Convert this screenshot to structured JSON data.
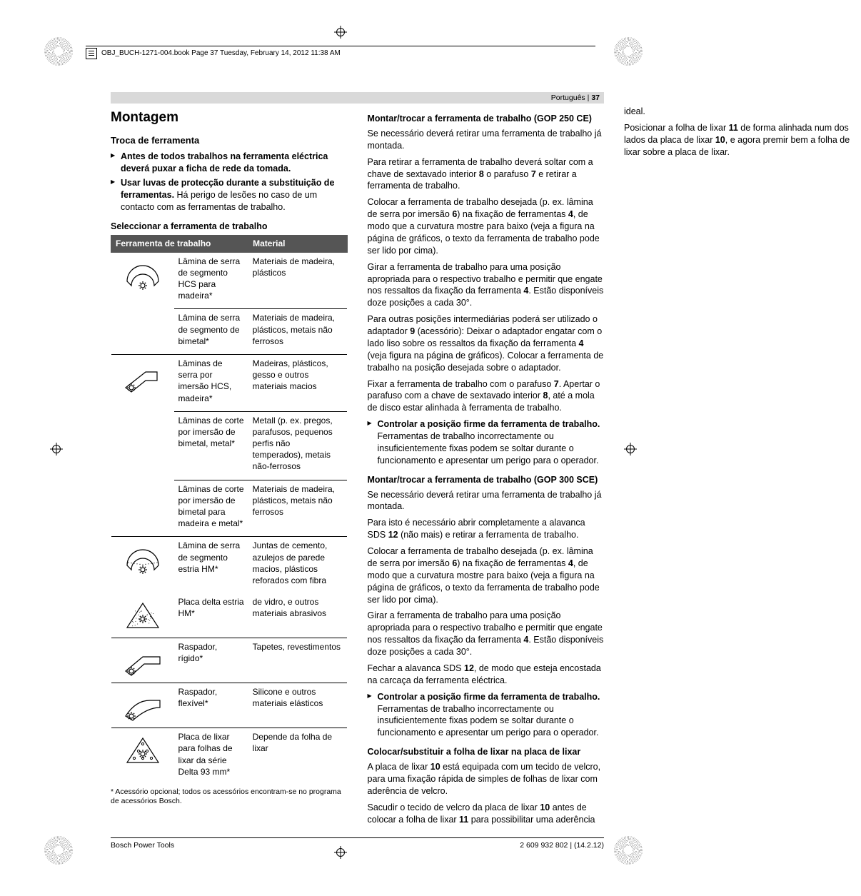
{
  "header": {
    "book_line": "OBJ_BUCH-1271-004.book  Page 37  Tuesday, February 14, 2012  11:38 AM"
  },
  "page_bar": {
    "lang": "Português |",
    "num": "37"
  },
  "left": {
    "h1": "Montagem",
    "h2": "Troca de ferramenta",
    "bullets": [
      {
        "lead": "Antes de todos trabalhos na ferramenta eléctrica deverá puxar a ficha de rede da tomada.",
        "rest": ""
      },
      {
        "lead": "Usar luvas de protecção durante a substituição de ferramentas.",
        "rest": " Há perigo de lesões no caso de um contacto com as ferramentas de trabalho."
      }
    ],
    "h3_select": "Seleccionar a ferramenta de trabalho",
    "table": {
      "head_tool": "Ferramenta de trabalho",
      "head_mat": "Material",
      "rows": [
        {
          "img": "seg1",
          "span": 2,
          "tool": "Lâmina de serra de segmento HCS para madeira*",
          "mat": "Materiais de madeira, plásticos"
        },
        {
          "img": null,
          "tool": "Lâmina de serra de segmento de bimetal*",
          "mat": "Materiais de madeira, plásticos, metais não ferrosos"
        },
        {
          "img": "plunge",
          "span": 3,
          "tool": "Lâminas de serra por imersão HCS, madeira*",
          "mat": "Madeiras, plásticos, gesso e outros materiais macios"
        },
        {
          "img": null,
          "tool": "Lâminas de corte por imersão de bimetal, metal*",
          "mat": "Metall (p. ex. pregos, parafusos, pequenos perfis não temperados), metais não-ferrosos"
        },
        {
          "img": null,
          "tool": "Lâminas de corte por imersão de bimetal para madeira e metal*",
          "mat": "Materiais de madeira, plásticos, metais não ferrosos"
        },
        {
          "img": "seg2",
          "span": 1,
          "tool": "Lâmina de serra de segmento estria HM*",
          "mat": "Juntas de cemento, azulejos de parede macios, plásticos reforados com fibra",
          "mat_cont_above": true
        },
        {
          "img": "delta1",
          "span": 1,
          "tool": "Placa delta estria HM*",
          "mat": "de vidro, e outros materiais abrasivos",
          "mat_no_top": true
        },
        {
          "img": "scraper1",
          "span": 1,
          "tool": "Raspador, rígido*",
          "mat": "Tapetes, revestimentos"
        },
        {
          "img": "scraper2",
          "span": 1,
          "tool": "Raspador, flexível*",
          "mat": "Silicone e outros materiais elásticos"
        },
        {
          "img": "delta2",
          "span": 1,
          "tool": "Placa de lixar para folhas de lixar da série Delta 93 mm*",
          "mat": "Depende da folha de lixar"
        }
      ],
      "footnote": "* Acessório opcional; todos os acessórios encontram-se no programa de acessórios Bosch."
    }
  },
  "right": {
    "sections": [
      {
        "type": "h3",
        "text": "Montar/trocar a ferramenta de trabalho (GOP 250 CE)"
      },
      {
        "type": "p",
        "text": "Se necessário deverá retirar uma ferramenta de trabalho já montada."
      },
      {
        "type": "p",
        "text": "Para retirar a ferramenta de trabalho deverá soltar com a chave de sextavado interior 8 o parafuso 7 e retirar a ferramenta de trabalho."
      },
      {
        "type": "p",
        "text": "Colocar a ferramenta de trabalho desejada (p. ex. lâmina de serra por imersão 6) na fixação de ferramentas 4, de modo que a curvatura mostre para baixo (veja a figura na página de gráficos, o texto da ferramenta de trabalho pode ser lido por cima)."
      },
      {
        "type": "p",
        "text": "Girar a ferramenta de trabalho para uma posição apropriada para o respectivo trabalho e permitir que engate nos ressaltos da fixação da ferramenta 4. Estão disponíveis doze posições a cada 30°."
      },
      {
        "type": "p",
        "text": "Para outras posições intermediárias poderá ser utilizado o adaptador 9 (acessório): Deixar o adaptador engatar com o lado liso sobre os ressaltos da fixação da ferramenta 4 (veja figura na página de gráficos). Colocar a ferramenta de trabalho na posição desejada sobre o adaptador."
      },
      {
        "type": "p",
        "text": "Fixar a ferramenta de trabalho com o parafuso 7. Apertar o parafuso com a chave de sextavado interior 8, até a mola de disco estar alinhada à ferramenta de trabalho."
      },
      {
        "type": "li",
        "lead": "Controlar a posição firme da ferramenta de trabalho.",
        "rest": " Ferramentas de trabalho incorrectamente ou insuficientemente fixas podem se soltar durante o funcionamento e apresentar um perigo para o operador."
      },
      {
        "type": "h3",
        "text": "Montar/trocar a ferramenta de trabalho (GOP 300 SCE)"
      },
      {
        "type": "p",
        "text": "Se necessário deverá retirar uma ferramenta de trabalho já montada."
      },
      {
        "type": "p",
        "text": "Para isto é necessário abrir completamente a alavanca SDS 12 (não mais) e retirar a ferramenta de trabalho."
      },
      {
        "type": "p",
        "text": "Colocar a ferramenta de trabalho desejada (p. ex. lâmina de serra por imersão 6) na fixação de ferramentas 4, de modo que a curvatura mostre para baixo (veja a figura na página de gráficos, o texto da ferramenta de trabalho pode ser lido por cima)."
      },
      {
        "type": "p",
        "text": "Girar a ferramenta de trabalho para uma posição apropriada para o respectivo trabalho e permitir que engate nos ressaltos da fixação da ferramenta 4. Estão disponíveis doze posições a cada 30°."
      },
      {
        "type": "p",
        "text": "Fechar a alavanca SDS 12, de modo que esteja encostada na carcaça da ferramenta eléctrica."
      },
      {
        "type": "li",
        "lead": "Controlar a posição firme da ferramenta de trabalho.",
        "rest": " Ferramentas de trabalho incorrectamente ou insuficientemente fixas podem se soltar durante o funcionamento e apresentar um perigo para o operador."
      },
      {
        "type": "h3",
        "text": "Colocar/substituir a folha de lixar na placa de lixar"
      },
      {
        "type": "p",
        "text": "A placa de lixar 10 está equipada com um tecido de velcro, para uma fixação rápida de simples de folhas de lixar com aderência de velcro."
      },
      {
        "type": "p",
        "text": "Sacudir o tecido de velcro da placa de lixar 10 antes de colocar a folha de lixar 11 para possibilitar uma aderência ideal."
      },
      {
        "type": "p",
        "text": "Posicionar a folha de lixar 11 de forma alinhada num dos lados da placa de lixar 10, e agora premir bem a folha de lixar sobre a placa de lixar."
      }
    ]
  },
  "footer": {
    "left": "Bosch Power Tools",
    "right": "2 609 932 802 | (14.2.12)"
  }
}
